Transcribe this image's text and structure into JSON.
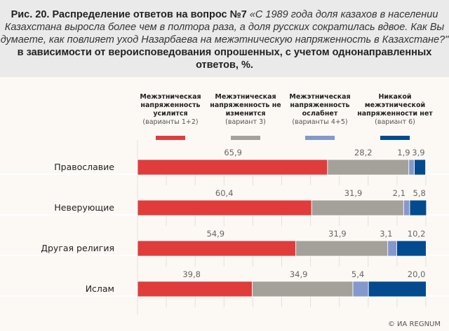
{
  "header": {
    "bold": "Рис. 20. Распределение ответов на вопрос №7",
    "italic": "«С 1989 года доля казахов в населении Казахстана выросла более чем в полтора раза, а доля русских сократилась вдвое. Как Вы думаете, как повлияет уход Назарбаева на межэтническую напряженность в Казахстане?\"",
    "bold2": " в зависимости от вероисповедования опрошенных, с учетом однонаправленных ответов, %."
  },
  "footer": "© ИА REGNUM",
  "chart_data": {
    "type": "bar",
    "stacked": true,
    "orientation": "horizontal",
    "title": "Рис. 20. Распределение ответов на вопрос №7",
    "categories": [
      "Православие",
      "Неверующие",
      "Другая религия",
      "Ислам"
    ],
    "xlim": [
      0,
      100
    ],
    "series": [
      {
        "name": "Межэтническая напряженность усилится",
        "note": "(варианты 1+2)",
        "color": "#e03c3c",
        "values": [
          65.9,
          60.4,
          54.9,
          39.8
        ],
        "labels": [
          "65,9",
          "60,4",
          "54,9",
          "39,8"
        ]
      },
      {
        "name": "Межэтническая напряженность не изменится",
        "note": "(вариант 3)",
        "color": "#a4a19b",
        "values": [
          28.2,
          31.9,
          31.9,
          34.9
        ],
        "labels": [
          "28,2",
          "31,9",
          "31,9",
          "34,9"
        ]
      },
      {
        "name": "Межэтническая напряженность ослабнет",
        "note": "(варианты 4+5)",
        "color": "#8598cb",
        "values": [
          1.9,
          2.1,
          3.1,
          5.4
        ],
        "labels": [
          "1,9",
          "2,1",
          "3,1",
          "5,4"
        ]
      },
      {
        "name": "Никакой межэтнической напряженности нет",
        "note": "(вариант 6)",
        "color": "#034a8f",
        "values": [
          3.9,
          5.8,
          10.2,
          20.0
        ],
        "labels": [
          "3,9",
          "5,8",
          "10,2",
          "20,0"
        ]
      }
    ]
  }
}
